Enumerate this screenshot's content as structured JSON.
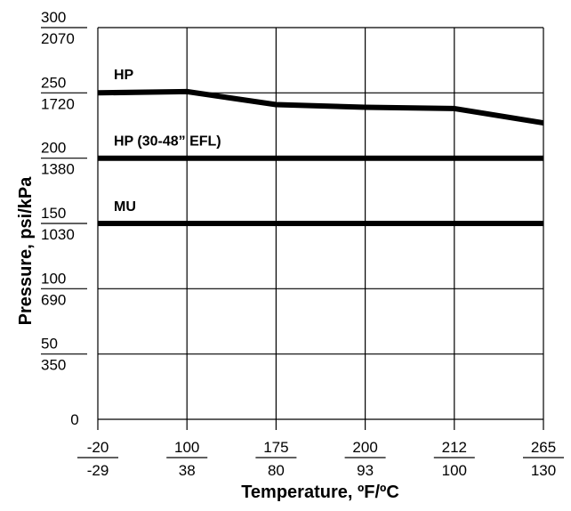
{
  "chart_data": {
    "type": "line",
    "xlabel": "Temperature, ºF/ºC",
    "ylabel": "Pressure, psi/kPa",
    "x_ticks": [
      {
        "top": "-20",
        "bottom": "-29"
      },
      {
        "top": "100",
        "bottom": "38"
      },
      {
        "top": "175",
        "bottom": "80"
      },
      {
        "top": "200",
        "bottom": "93"
      },
      {
        "top": "212",
        "bottom": "100"
      },
      {
        "top": "265",
        "bottom": "130"
      }
    ],
    "y_ticks": [
      {
        "value": 0,
        "top": "0",
        "bottom": ""
      },
      {
        "value": 50,
        "top": "50",
        "bottom": "350"
      },
      {
        "value": 100,
        "top": "100",
        "bottom": "690"
      },
      {
        "value": 150,
        "top": "150",
        "bottom": "1030"
      },
      {
        "value": 200,
        "top": "200",
        "bottom": "1380"
      },
      {
        "value": 250,
        "top": "250",
        "bottom": "1720"
      },
      {
        "value": 300,
        "top": "300",
        "bottom": "2070"
      }
    ],
    "ylim": [
      0,
      300
    ],
    "grid": true,
    "series": [
      {
        "name": "HP",
        "values": [
          250,
          251,
          241,
          239,
          238,
          227
        ]
      },
      {
        "name": "HP (30-48” EFL)",
        "values": [
          200,
          200,
          200,
          200,
          200,
          200
        ]
      },
      {
        "name": "MU",
        "values": [
          150,
          150,
          150,
          150,
          150,
          150
        ]
      }
    ]
  }
}
